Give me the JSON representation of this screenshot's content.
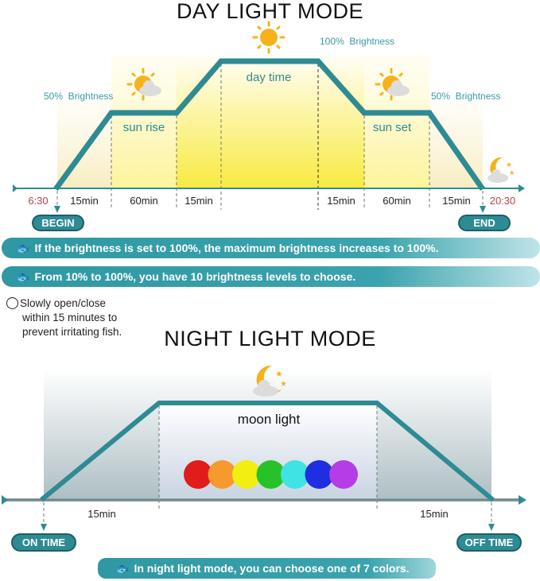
{
  "day": {
    "title": "DAY LIGHT MODE",
    "brightness_left": "50%  Brightness",
    "brightness_right": "50%  Brightness",
    "brightness_top": "100%  Brightness",
    "sun_rise": "sun rise",
    "day_time": "day time",
    "sun_set": "sun set",
    "start_time": "6:30",
    "end_time": "20:30",
    "durations": [
      "15min",
      "60min",
      "15min",
      "15min",
      "60min",
      "15min"
    ],
    "begin_label": "BEGIN",
    "end_label": "END"
  },
  "banners": [
    "If the brightness is set to 100%, the maximum brightness increases to 100%.",
    "From 10% to 100%, you have 10 brightness levels to choose."
  ],
  "note": [
    "Slowly open/close",
    "within 15 minutes to",
    "prevent irritating fish."
  ],
  "night": {
    "title": "NIGHT LIGHT MODE",
    "moon_light": "moon light",
    "durations": [
      "15min",
      "15min"
    ],
    "on_label": "ON TIME",
    "off_label": "OFF TIME",
    "banner": "In night light mode, you can choose one of 7 colors.",
    "colors": [
      "#e21b1b",
      "#f79a2e",
      "#f2ee0f",
      "#27c22a",
      "#3fe3e3",
      "#1f2ee0",
      "#b53de8"
    ]
  },
  "accent": "#2e8b94",
  "time_color": "#b04545"
}
